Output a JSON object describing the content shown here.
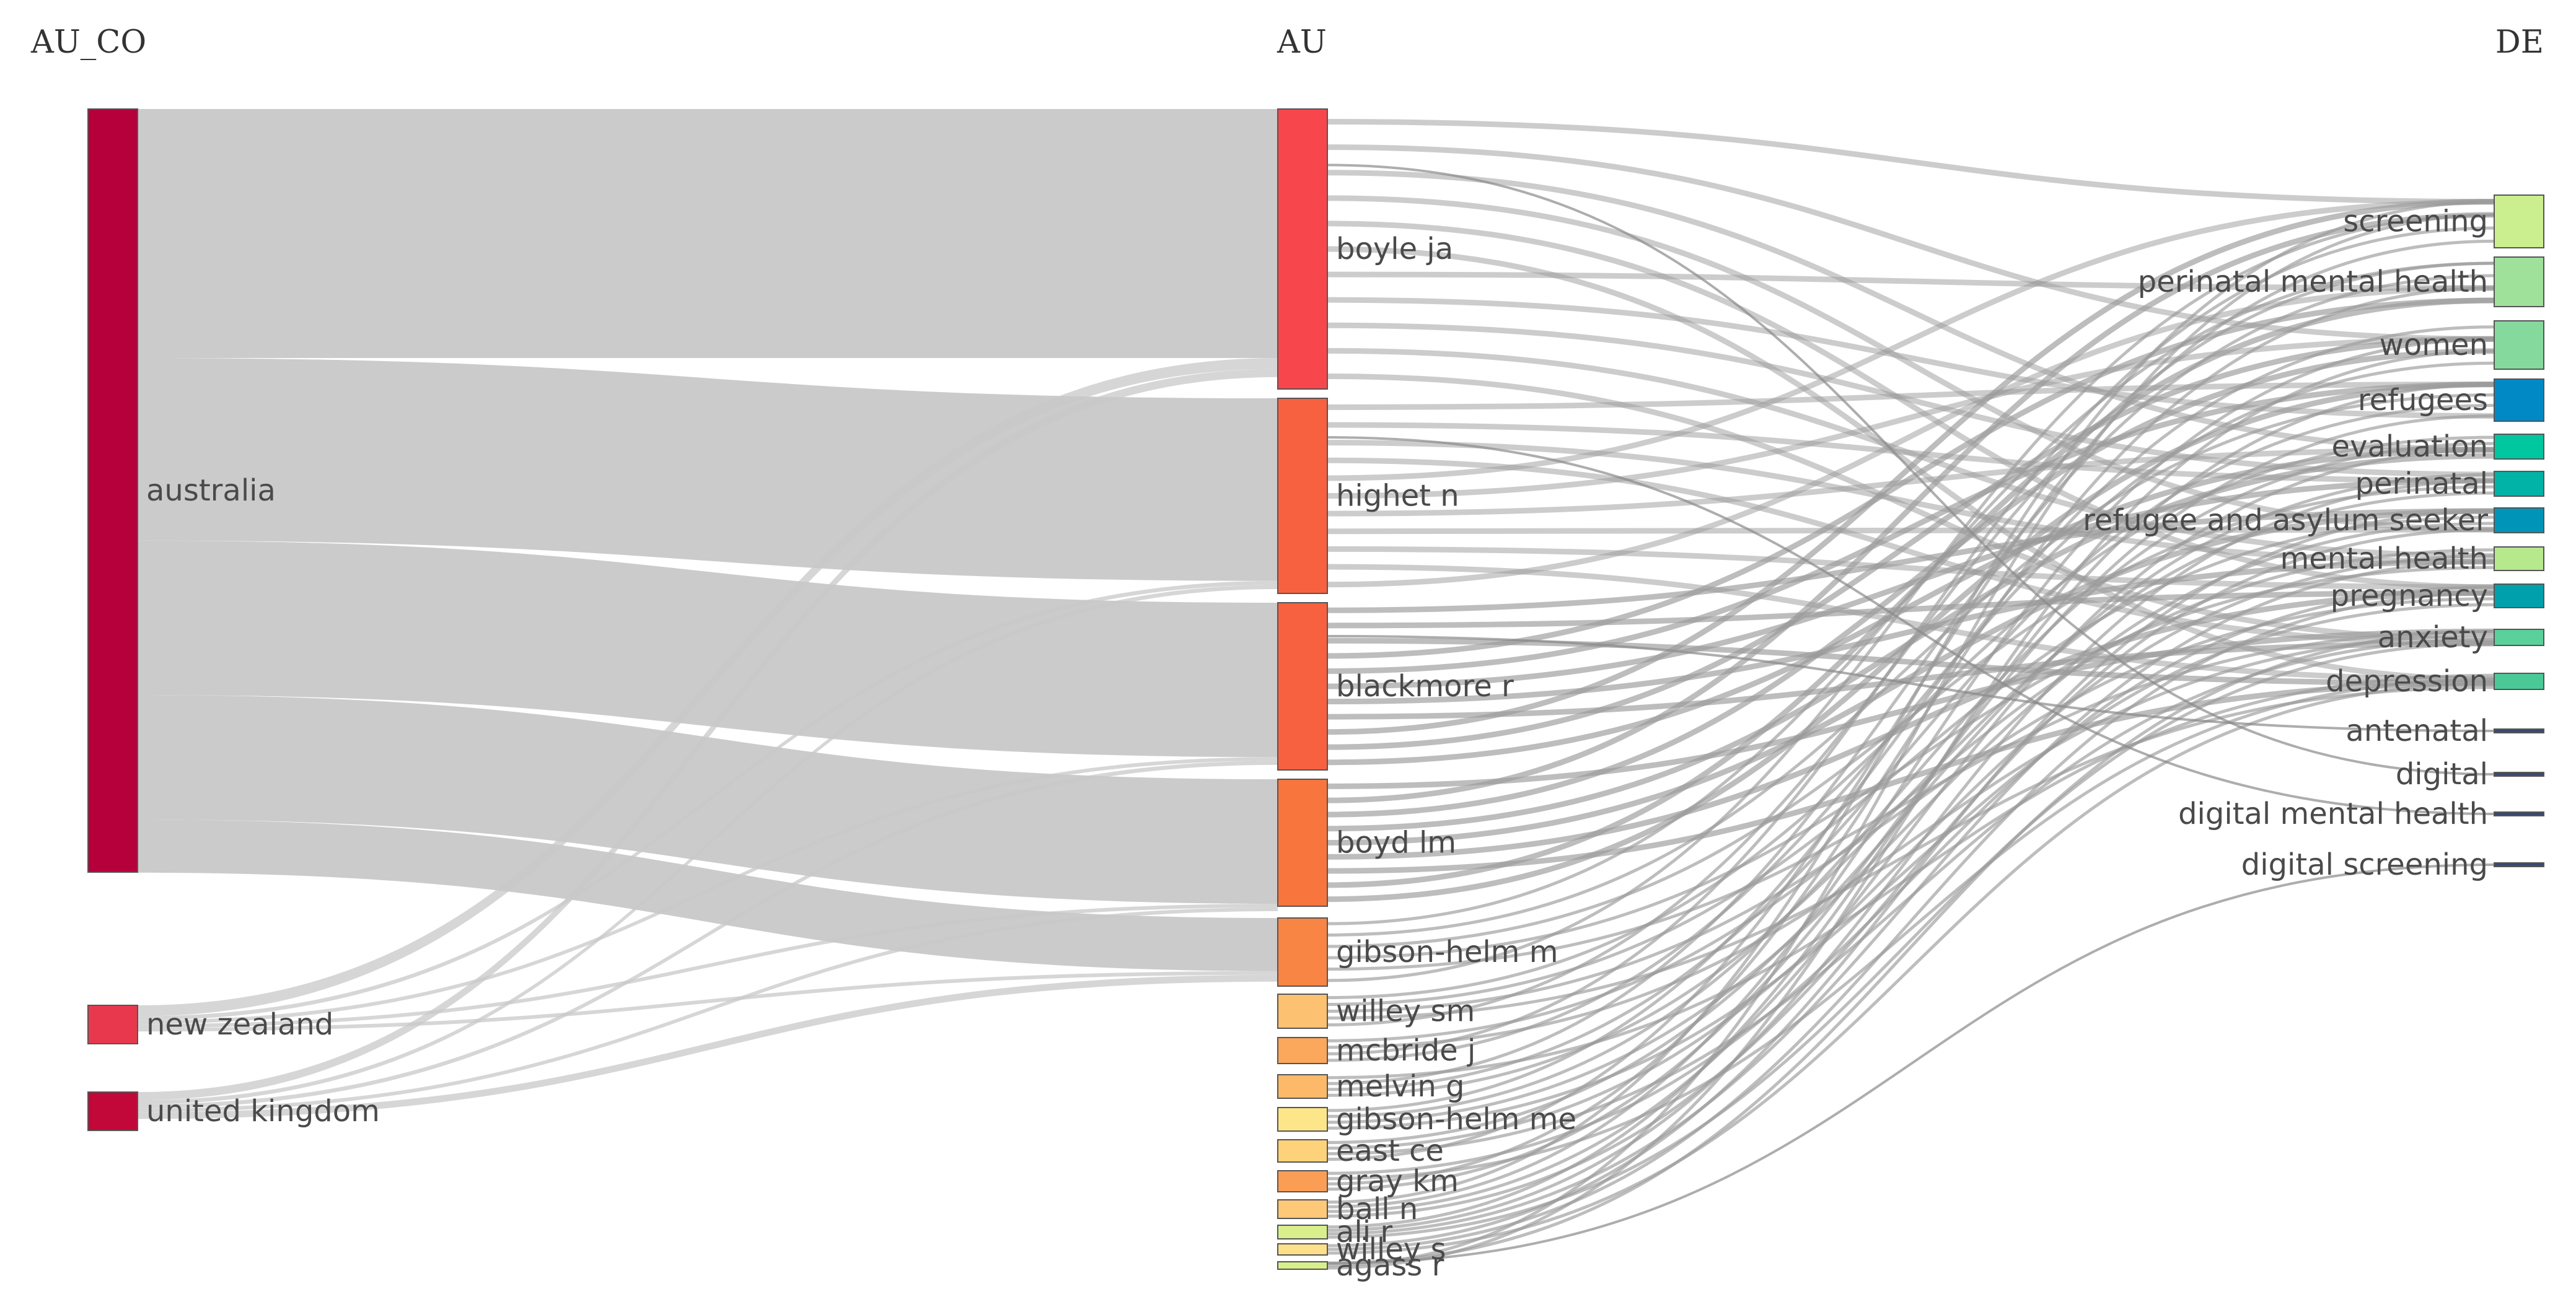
{
  "chart_data": {
    "type": "sankey",
    "columns": [
      "AU_CO",
      "AU",
      "DE"
    ],
    "nodes": {
      "AU_CO": [
        {
          "name": "australia",
          "value": 46,
          "color": "#b5003c"
        },
        {
          "name": "new zealand",
          "value": 2,
          "color": "#e8384d"
        },
        {
          "name": "united kingdom",
          "value": 2,
          "color": "#c10838"
        }
      ],
      "AU": [
        {
          "name": "boyle ja",
          "value": 17,
          "color": "#f7474d"
        },
        {
          "name": "highet n",
          "value": 12,
          "color": "#f8613f"
        },
        {
          "name": "blackmore r",
          "value": 10,
          "color": "#f8613f"
        },
        {
          "name": "boyd lm",
          "value": 8,
          "color": "#f8753e"
        },
        {
          "name": "gibson-helm m",
          "value": 4,
          "color": "#f98544"
        },
        {
          "name": "willey sm",
          "value": 2,
          "color": "#fcc171"
        },
        {
          "name": "mcbride j",
          "value": 1.6,
          "color": "#fba75c"
        },
        {
          "name": "melvin g",
          "value": 1.5,
          "color": "#fcb96a"
        },
        {
          "name": "gibson-helm me",
          "value": 1.5,
          "color": "#fde68a"
        },
        {
          "name": "east ce",
          "value": 1.3,
          "color": "#fdd27a"
        },
        {
          "name": "gray km",
          "value": 1.2,
          "color": "#fb9e55"
        },
        {
          "name": "ball n",
          "value": 1,
          "color": "#fdc878"
        },
        {
          "name": "ali r",
          "value": 0.8,
          "color": "#d9ef8b"
        },
        {
          "name": "willey s",
          "value": 0.6,
          "color": "#fee08b"
        },
        {
          "name": "agass r",
          "value": 0.4,
          "color": "#d9ef8b"
        }
      ],
      "DE": [
        {
          "name": "screening",
          "value": 6,
          "color": "#cbef8f"
        },
        {
          "name": "perinatal mental health",
          "value": 5.5,
          "color": "#9fe09a"
        },
        {
          "name": "women",
          "value": 5.5,
          "color": "#86d99d"
        },
        {
          "name": "refugees",
          "value": 4.5,
          "color": "#0089c4"
        },
        {
          "name": "evaluation",
          "value": 3,
          "color": "#00c7a0"
        },
        {
          "name": "perinatal",
          "value": 3,
          "color": "#00b3a6"
        },
        {
          "name": "refugee and asylum seeker",
          "value": 3,
          "color": "#0095b8"
        },
        {
          "name": "mental health",
          "value": 2.5,
          "color": "#b6e88c"
        },
        {
          "name": "pregnancy",
          "value": 2.5,
          "color": "#00a0ad"
        },
        {
          "name": "anxiety",
          "value": 1.7,
          "color": "#5ad09a"
        },
        {
          "name": "depression",
          "value": 1.7,
          "color": "#4ac997"
        },
        {
          "name": "antenatal",
          "value": 0.2,
          "color": "#3a4a70"
        },
        {
          "name": "digital",
          "value": 0.2,
          "color": "#3a4a70"
        },
        {
          "name": "digital mental health",
          "value": 0.2,
          "color": "#3a4a70"
        },
        {
          "name": "digital screening",
          "value": 0.2,
          "color": "#3a4a70"
        }
      ]
    },
    "links_au_co_to_au": [
      {
        "source": "australia",
        "target": "boyle ja",
        "value": 15
      },
      {
        "source": "australia",
        "target": "highet n",
        "value": 11
      },
      {
        "source": "australia",
        "target": "blackmore r",
        "value": 9.3
      },
      {
        "source": "australia",
        "target": "boyd lm",
        "value": 7.5
      },
      {
        "source": "australia",
        "target": "gibson-helm m",
        "value": 3.2
      },
      {
        "source": "new zealand",
        "target": "boyle ja",
        "value": 0.8
      },
      {
        "source": "new zealand",
        "target": "highet n",
        "value": 0.3
      },
      {
        "source": "new zealand",
        "target": "blackmore r",
        "value": 0.25
      },
      {
        "source": "new zealand",
        "target": "boyd lm",
        "value": 0.15
      },
      {
        "source": "new zealand",
        "target": "gibson-helm m",
        "value": 0.1
      },
      {
        "source": "united kingdom",
        "target": "boyle ja",
        "value": 0.6
      },
      {
        "source": "united kingdom",
        "target": "highet n",
        "value": 0.3
      },
      {
        "source": "united kingdom",
        "target": "blackmore r",
        "value": 0.3
      },
      {
        "source": "united kingdom",
        "target": "boyd lm",
        "value": 0.15
      },
      {
        "source": "united kingdom",
        "target": "gibson-helm m",
        "value": 0.5
      }
    ],
    "link_style": {
      "first_stage_color": "#c8c8c8",
      "second_stage_color": "#9a9a9a"
    }
  }
}
